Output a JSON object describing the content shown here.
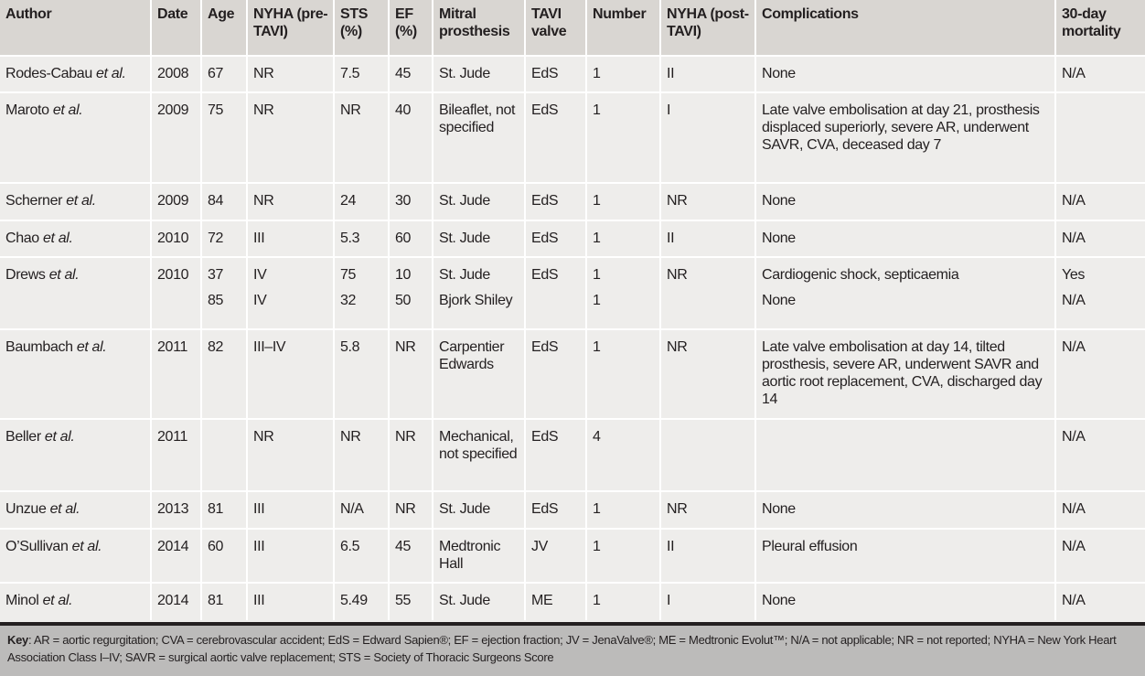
{
  "headers": [
    "Author",
    "Date",
    "Age",
    "NYHA (pre-TAVI)",
    "STS (%)",
    "EF (%)",
    "Mitral prosthesis",
    "TAVI valve",
    "Number",
    "NYHA (post-TAVI)",
    "Complications",
    "30-day mortality"
  ],
  "rows": [
    {
      "author": "Rodes-Cabau",
      "etal": "et al.",
      "date": "2008",
      "age": "67",
      "nyha_pre": "NR",
      "sts": "7.5",
      "ef": "45",
      "mitral": "St. Jude",
      "tavi": "EdS",
      "number": "1",
      "nyha_post": "II",
      "complications": "None",
      "mortality": "N/A",
      "h": 40
    },
    {
      "author": "Maroto",
      "etal": "et al.",
      "date": "2009",
      "age": "75",
      "nyha_pre": "NR",
      "sts": "NR",
      "ef": "40",
      "mitral": "Bileaflet, not specified",
      "tavi": "EdS",
      "number": "1",
      "nyha_post": "I",
      "complications": "Late valve embolisation at day 21, prosthesis displaced superiorly, severe AR, underwent SAVR, CVA, deceased day 7",
      "mortality": "",
      "h": 99
    },
    {
      "author": "Scherner",
      "etal": "et al.",
      "date": "2009",
      "age": "84",
      "nyha_pre": "NR",
      "sts": "24",
      "ef": "30",
      "mitral": "St. Jude",
      "tavi": "EdS",
      "number": "1",
      "nyha_post": "NR",
      "complications": "None",
      "mortality": "N/A",
      "h": 41
    },
    {
      "author": "Chao",
      "etal": "et al.",
      "date": "2010",
      "age": "72",
      "nyha_pre": "III",
      "sts": "5.3",
      "ef": "60",
      "mitral": "St. Jude",
      "tavi": "EdS",
      "number": "1",
      "nyha_post": "II",
      "complications": "None",
      "mortality": "N/A",
      "h": 40
    },
    {
      "author": "Drews",
      "etal": "et al.",
      "date": "2010",
      "age": "37",
      "nyha_pre": "IV",
      "sts": "75",
      "ef": "10",
      "mitral": "St. Jude",
      "tavi": "EdS",
      "number": "1",
      "nyha_post": "NR",
      "complications": "Cardiogenic shock, septicaemia",
      "mortality": "Yes",
      "h": 38
    },
    {
      "author": "",
      "etal": "",
      "date": "",
      "age": "85",
      "nyha_pre": "IV",
      "sts": "32",
      "ef": "50",
      "mitral": "Bjork Shiley",
      "tavi": "",
      "number": "1",
      "nyha_post": "",
      "complications": "None",
      "mortality": "N/A",
      "h": 41,
      "cont": true
    },
    {
      "author": "Baumbach",
      "etal": "et al.",
      "date": "2011",
      "age": "82",
      "nyha_pre": "III–IV",
      "sts": "5.8",
      "ef": "NR",
      "mitral": "Carpentier Edwards",
      "tavi": "EdS",
      "number": "1",
      "nyha_post": "NR",
      "complications": "Late valve embolisation at day 14, tilted prosthesis, severe AR, underwent SAVR and aortic root replacement, CVA, discharged day 14",
      "mortality": "N/A",
      "h": 98
    },
    {
      "author": "Beller",
      "etal": "et al.",
      "date": "2011",
      "age": "",
      "nyha_pre": "NR",
      "sts": "NR",
      "ef": "NR",
      "mitral": "Mechanical, not specified",
      "tavi": "EdS",
      "number": "4",
      "nyha_post": "",
      "complications": "",
      "mortality": "N/A",
      "h": 79
    },
    {
      "author": "Unzue",
      "etal": "et al.",
      "date": "2013",
      "age": "81",
      "nyha_pre": "III",
      "sts": "N/A",
      "ef": "NR",
      "mitral": "St. Jude",
      "tavi": "EdS",
      "number": "1",
      "nyha_post": "NR",
      "complications": "None",
      "mortality": "N/A",
      "h": 41
    },
    {
      "author": "O’Sullivan",
      "etal": "et al.",
      "date": "2014",
      "age": "60",
      "nyha_pre": "III",
      "sts": "6.5",
      "ef": "45",
      "mitral": "Medtronic Hall",
      "tavi": "JV",
      "number": "1",
      "nyha_post": "II",
      "complications": "Pleural effusion",
      "mortality": "N/A",
      "h": 59
    },
    {
      "author": "Minol",
      "etal": "et al.",
      "date": "2014",
      "age": "81",
      "nyha_pre": "III",
      "sts": "5.49",
      "ef": "55",
      "mitral": "St. Jude",
      "tavi": "ME",
      "number": "1",
      "nyha_post": "I",
      "complications": "None",
      "mortality": "N/A",
      "h": 41
    }
  ],
  "key": {
    "label": "Key",
    "text": ": AR = aortic regurgitation; CVA = cerebrovascular accident; EdS = Edward Sapien®; EF = ejection fraction; JV = JenaValve®; ME = Medtronic Evolut™; N/A = not applicable; NR = not reported; NYHA = New York Heart Association Class I–IV; SAVR = surgical aortic valve replacement; STS = Society of Thoracic Surgeons Score"
  }
}
